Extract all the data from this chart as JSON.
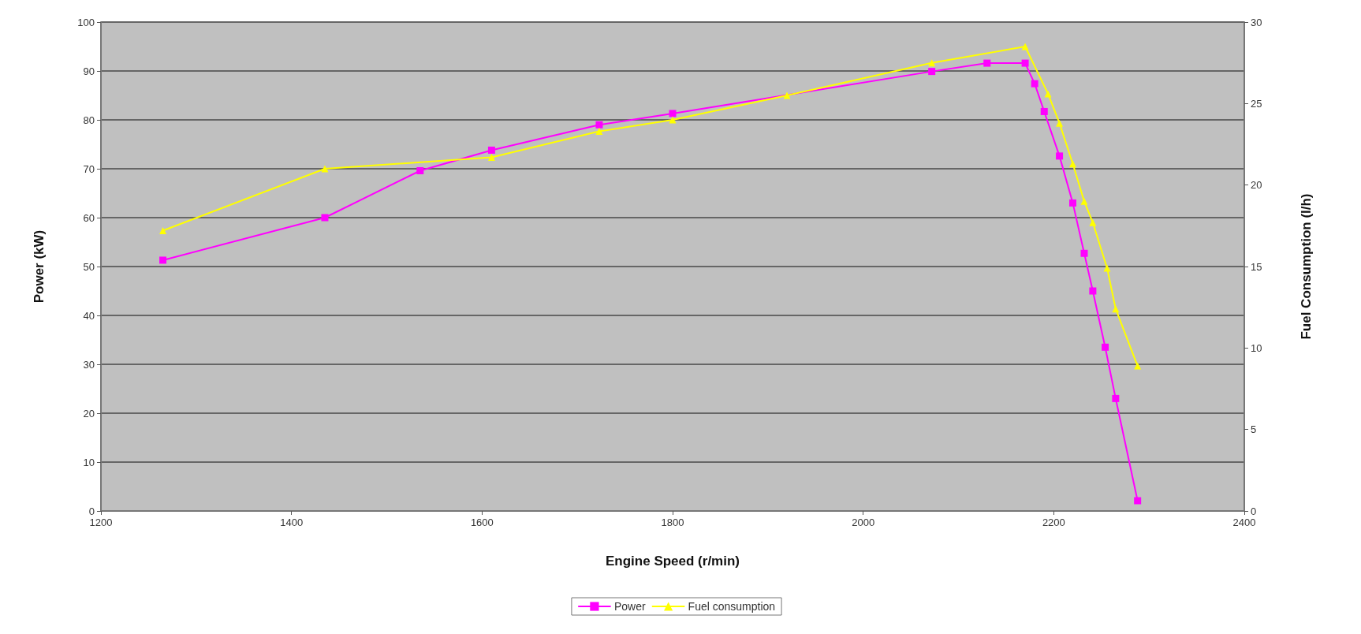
{
  "chart_data": {
    "type": "line",
    "xlabel": "Engine Speed (r/min)",
    "ylabel": "Power (kW)",
    "y2label": "Fuel Consumption (l/h)",
    "xlim": [
      1200,
      2400
    ],
    "xticks": [
      1200,
      1400,
      1600,
      1800,
      2000,
      2200,
      2400
    ],
    "ylim": [
      0,
      100
    ],
    "yticks": [
      0,
      10,
      20,
      30,
      40,
      50,
      60,
      70,
      80,
      90,
      100
    ],
    "y2lim": [
      0,
      30
    ],
    "y2ticks": [
      0,
      5,
      10,
      15,
      20,
      25,
      30
    ],
    "grid": "y",
    "legend": "bottom",
    "line_style": "solid",
    "series": [
      {
        "name": "Power",
        "color": "#ff00ff",
        "marker": "square",
        "x": [
          1265,
          1435,
          1535,
          1610,
          1723,
          1800,
          2072,
          2130,
          2170,
          2180,
          2190,
          2206,
          2220,
          2232,
          2241,
          2254,
          2265,
          2288
        ],
        "values": [
          51.3,
          60,
          69.6,
          73.8,
          79,
          81.3,
          89.9,
          91.6,
          91.6,
          87.4,
          81.7,
          72.6,
          63,
          52.7,
          45,
          33.5,
          23,
          2.1
        ]
      },
      {
        "name": "Fuel consumption",
        "color": "#ffff00",
        "marker": "triangle",
        "axis": "y2",
        "x": [
          1265,
          1435,
          1610,
          1723,
          1800,
          1920,
          2072,
          2170,
          2194,
          2206,
          2220,
          2232,
          2241,
          2256,
          2265,
          2288
        ],
        "values": [
          17.2,
          21,
          21.7,
          23.3,
          24,
          25.5,
          27.5,
          28.5,
          25.6,
          23.8,
          21.3,
          19,
          17.7,
          14.9,
          12.4,
          8.9
        ]
      }
    ]
  }
}
